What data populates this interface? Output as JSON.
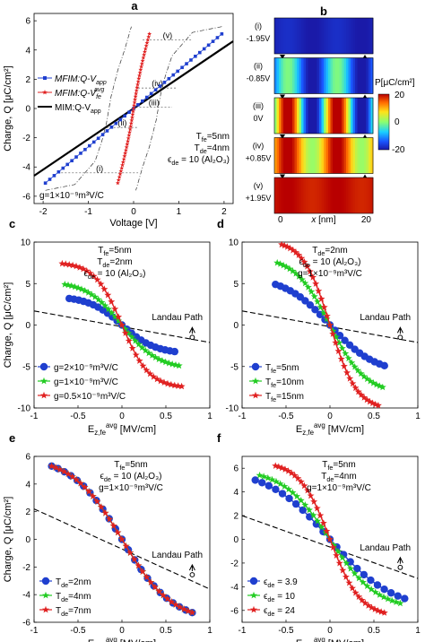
{
  "figure": {
    "colors": {
      "blue": "#1f3fcf",
      "red": "#e02020",
      "green": "#22cc22",
      "black": "#000000"
    }
  },
  "chart_data": [
    {
      "id": "a",
      "type": "line",
      "panel_label": "a",
      "xlabel": "Voltage [V]",
      "ylabel": "Charge, Q [μC/cm²]",
      "xlim": [
        -2.2,
        2.2
      ],
      "ylim": [
        -6.5,
        6.5
      ],
      "xticks": [
        -2,
        -1,
        0,
        1,
        2
      ],
      "yticks": [
        -6,
        -4,
        -2,
        0,
        2,
        4,
        6
      ],
      "legend": [
        "MFIM:Q-V_app",
        "MFIM:Q-V_fe^avg",
        "MIM:Q-V_app"
      ],
      "annotations": [
        "T_fe=5nm",
        "T_de=4nm",
        "ϵ_de = 10 (Al₂O₃)",
        "g=1×10⁻⁹m³V/C"
      ],
      "state_labels": [
        "(i)",
        "(ii)",
        "(iii)",
        "(iv)",
        "(v)"
      ],
      "series": [
        {
          "name": "MFIM:Q-V_app",
          "x": [
            -1.95,
            1.95
          ],
          "y": [
            -5.1,
            5.1
          ],
          "style": "blue-square-dots"
        },
        {
          "name": "MFIM:Q-V_fe^avg",
          "x": [
            -0.35,
            -0.3,
            -0.2,
            -0.1,
            0,
            0.1,
            0.2,
            0.3,
            0.35
          ],
          "y": [
            -5.1,
            -4.2,
            -2.7,
            -1.4,
            0,
            1.4,
            2.7,
            4.2,
            5.1
          ],
          "style": "red-star"
        },
        {
          "name": "MIM:Q-V_app",
          "x": [
            -2.2,
            2.2
          ],
          "y": [
            -4.6,
            4.6
          ],
          "style": "black-line"
        }
      ]
    },
    {
      "id": "b",
      "type": "heatmap",
      "panel_label": "b",
      "colorbar_label": "P[μC/cm²]",
      "colorbar_ticks": [
        20,
        0,
        -20
      ],
      "xlabel": "x [nm]",
      "xticks": [
        0,
        20
      ],
      "states": [
        {
          "label": "(i)",
          "voltage": "-1.95V",
          "level": -0.95
        },
        {
          "label": "(ii)",
          "voltage": "-0.85V",
          "level": -0.55
        },
        {
          "label": "(iii)",
          "voltage": "0V",
          "level": 0.0
        },
        {
          "label": "(iv)",
          "voltage": "+0.85V",
          "level": 0.55
        },
        {
          "label": "(v)",
          "voltage": "+1.95V",
          "level": 0.95
        }
      ]
    },
    {
      "id": "c",
      "type": "line",
      "panel_label": "c",
      "xlabel": "E_z,fe^avg [MV/cm]",
      "ylabel": "Charge, Q [μC/cm²]",
      "xlim": [
        -1,
        1
      ],
      "ylim": [
        -10,
        10
      ],
      "xticks": [
        -1,
        -0.5,
        0,
        0.5,
        1
      ],
      "yticks": [
        -10,
        -5,
        0,
        5,
        10
      ],
      "annotations": [
        "T_fe=5nm",
        "T_de=2nm",
        "ϵ_de = 10 (Al₂O₃)"
      ],
      "landau_label": "Landau Path",
      "series": [
        {
          "name": "g=2×10⁻⁹m³V/C",
          "xend": 0.6,
          "yend": 3.2,
          "marker": "circle",
          "color": "#1f3fcf"
        },
        {
          "name": "g=1×10⁻⁹m³V/C",
          "xend": 0.65,
          "yend": 4.9,
          "marker": "star",
          "color": "#22cc22"
        },
        {
          "name": "g=0.5×10⁻⁹m³V/C",
          "xend": 0.68,
          "yend": 7.4,
          "marker": "star",
          "color": "#e02020"
        }
      ],
      "landau": {
        "x": [
          -1,
          1
        ],
        "y": [
          1.7,
          -2.1
        ]
      }
    },
    {
      "id": "d",
      "type": "line",
      "panel_label": "d",
      "xlabel": "E_z,fe^avg [MV/cm]",
      "ylabel": "",
      "xlim": [
        -1,
        1
      ],
      "ylim": [
        -10,
        10
      ],
      "xticks": [
        -1,
        -0.5,
        0,
        0.5,
        1
      ],
      "yticks": [
        -10,
        -5,
        0,
        5,
        10
      ],
      "annotations": [
        "T_de=2nm",
        "ϵ_de = 10 (Al₂O₃)",
        "g=1×10⁻⁹m³V/C"
      ],
      "landau_label": "Landau Path",
      "series": [
        {
          "name": "T_fe=5nm",
          "xend": 0.62,
          "yend": 4.9,
          "marker": "circle",
          "color": "#1f3fcf"
        },
        {
          "name": "T_fe=10nm",
          "xend": 0.6,
          "yend": 7.5,
          "marker": "star",
          "color": "#22cc22"
        },
        {
          "name": "T_fe=15nm",
          "xend": 0.55,
          "yend": 9.7,
          "marker": "star",
          "color": "#e02020"
        }
      ],
      "landau": {
        "x": [
          -1,
          1
        ],
        "y": [
          1.7,
          -2.1
        ]
      }
    },
    {
      "id": "e",
      "type": "line",
      "panel_label": "e",
      "xlabel": "E_z,fe^avg [MV/cm]",
      "ylabel": "Charge, Q [μC/cm²]",
      "xlim": [
        -1,
        1
      ],
      "ylim": [
        -6,
        6
      ],
      "xticks": [
        -1,
        -0.5,
        0,
        0.5,
        1
      ],
      "yticks": [
        -6,
        -4,
        -2,
        0,
        2,
        4,
        6
      ],
      "annotations": [
        "T_fe=5nm",
        "ϵ_de = 10 (Al₂O₃)",
        "g=1×10⁻⁹m³V/C"
      ],
      "landau_label": "Landau Path",
      "series": [
        {
          "name": "T_de=2nm",
          "xend": 0.8,
          "yend": 5.3,
          "marker": "circle",
          "color": "#1f3fcf"
        },
        {
          "name": "T_de=4nm",
          "xend": 0.8,
          "yend": 5.3,
          "marker": "star",
          "color": "#22cc22"
        },
        {
          "name": "T_de=7nm",
          "xend": 0.8,
          "yend": 5.3,
          "marker": "star",
          "color": "#e02020"
        }
      ],
      "landau": {
        "x": [
          -1,
          1
        ],
        "y": [
          2.2,
          -3.6
        ]
      }
    },
    {
      "id": "f",
      "type": "line",
      "panel_label": "f",
      "xlabel": "E_z,fe^avg [MV/cm]",
      "ylabel": "",
      "xlim": [
        -1,
        1
      ],
      "ylim": [
        -7,
        7
      ],
      "xticks": [
        -1,
        -0.5,
        0,
        0.5,
        1
      ],
      "yticks": [
        -6,
        -4,
        -2,
        0,
        2,
        4,
        6
      ],
      "annotations": [
        "T_fe=5nm",
        "T_de=4nm",
        "g=1×10⁻⁹m³V/C"
      ],
      "landau_label": "Landau Path",
      "series": [
        {
          "name": "ϵ_de = 3.9",
          "xend": 0.85,
          "yend": 5.0,
          "marker": "circle",
          "color": "#1f3fcf"
        },
        {
          "name": "ϵ_de = 10",
          "xend": 0.8,
          "yend": 5.4,
          "marker": "star",
          "color": "#22cc22"
        },
        {
          "name": "ϵ_de = 24",
          "xend": 0.62,
          "yend": 6.2,
          "marker": "star",
          "color": "#e02020"
        }
      ],
      "landau": {
        "x": [
          -1,
          1
        ],
        "y": [
          2.0,
          -3.3
        ]
      }
    }
  ]
}
